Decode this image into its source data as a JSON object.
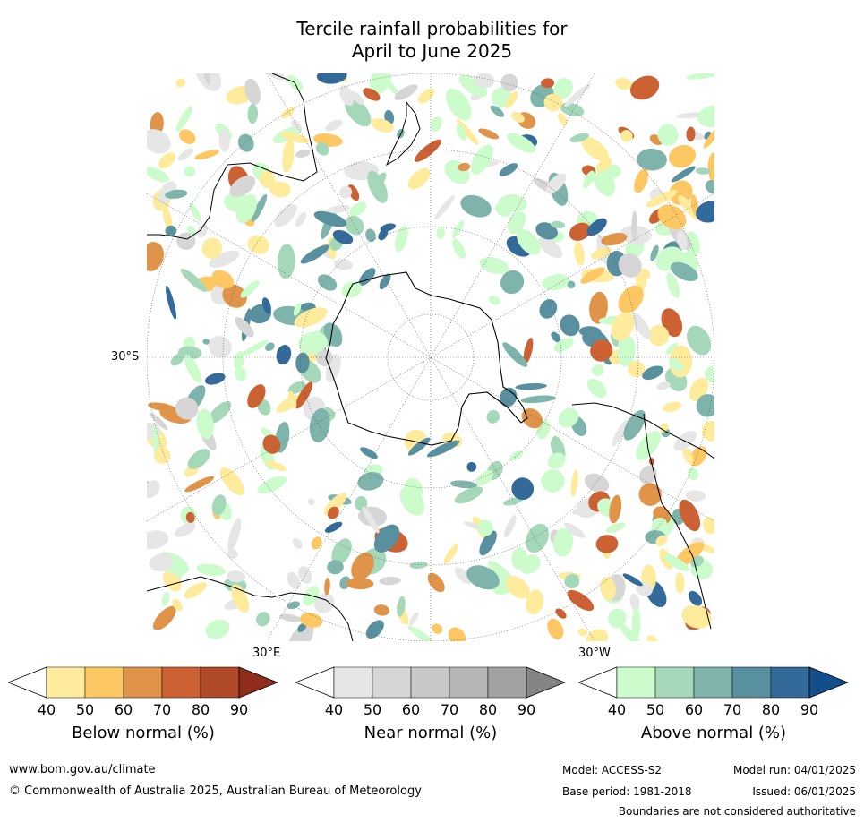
{
  "title_line1": "Tercile rainfall probabilities for",
  "title_line2": "April to June 2025",
  "map": {
    "lat_label": "30°S",
    "lon_label_east": "30°E",
    "lon_label_west": "30°W"
  },
  "colorbars": {
    "below": {
      "label": "Below normal (%)",
      "ticks": [
        "40",
        "50",
        "60",
        "70",
        "80",
        "90"
      ],
      "colors": [
        "#ffffff",
        "#ffeb9c",
        "#fdc863",
        "#e0944a",
        "#cc6233",
        "#b04a28",
        "#8f2c1c"
      ]
    },
    "near": {
      "label": "Near normal (%)",
      "ticks": [
        "40",
        "50",
        "60",
        "70",
        "80",
        "90"
      ],
      "colors": [
        "#ffffff",
        "#e6e6e6",
        "#d6d6d6",
        "#c8c8c8",
        "#b5b5b5",
        "#a2a2a2",
        "#848484"
      ]
    },
    "above": {
      "label": "Above normal (%)",
      "ticks": [
        "40",
        "50",
        "60",
        "70",
        "80",
        "90"
      ],
      "colors": [
        "#ffffff",
        "#ccfccc",
        "#a5d8b8",
        "#7fb4ac",
        "#5990a0",
        "#336a9a",
        "#134d8a"
      ]
    }
  },
  "footer": {
    "website": "www.bom.gov.au/climate",
    "copyright": "© Commonwealth of Australia 2025, Australian Bureau of Meteorology",
    "model": "Model: ACCESS-S2",
    "base_period": "Base period: 1981-2018",
    "model_run": "Model run: 04/01/2025",
    "issued": "Issued: 06/01/2025",
    "disclaimer": "Boundaries are not considered authoritative"
  }
}
